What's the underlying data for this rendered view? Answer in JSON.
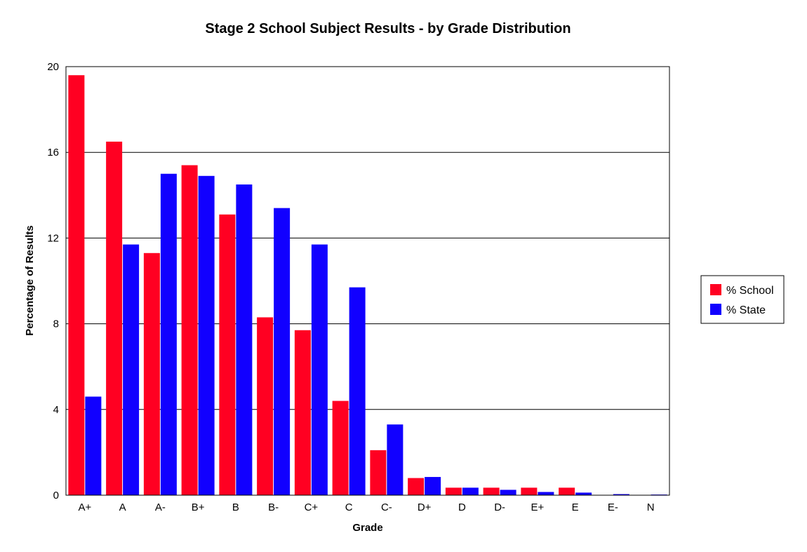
{
  "chart_data": {
    "type": "bar",
    "title": "Stage 2 School Subject Results - by Grade Distribution",
    "xlabel": "Grade",
    "ylabel": "Percentage of Results",
    "ylim": [
      0,
      20
    ],
    "yticks": [
      "0",
      "4",
      "8",
      "12",
      "16",
      "20"
    ],
    "grid": true,
    "legend_position": "right",
    "categories": [
      "A+",
      "A",
      "A-",
      "B+",
      "B",
      "B-",
      "C+",
      "C",
      "C-",
      "D+",
      "D",
      "D-",
      "E+",
      "E",
      "E-",
      "N"
    ],
    "series": [
      {
        "name": "% School",
        "color": "#ff0022",
        "values": [
          19.6,
          16.5,
          11.3,
          15.4,
          13.1,
          8.3,
          7.7,
          4.4,
          2.1,
          0.8,
          0.35,
          0.35,
          0.35,
          0.35,
          0,
          0
        ]
      },
      {
        "name": "% State",
        "color": "#1100ff",
        "values": [
          4.6,
          11.7,
          15.0,
          14.9,
          14.5,
          13.4,
          11.7,
          9.7,
          3.3,
          0.85,
          0.35,
          0.25,
          0.15,
          0.12,
          0.05,
          0.03
        ]
      }
    ]
  }
}
